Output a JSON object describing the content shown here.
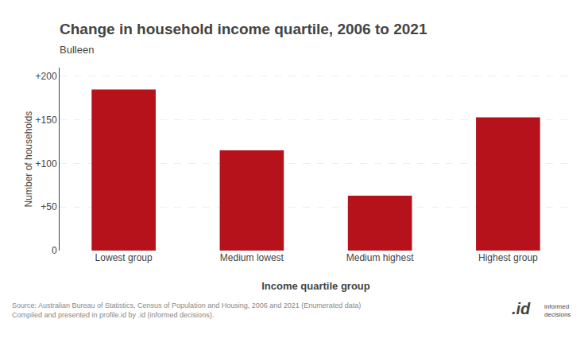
{
  "chart_data": {
    "type": "bar",
    "title": "Change in household income quartile, 2006 to 2021",
    "subtitle": "Bulleen",
    "xlabel": "Income quartile group",
    "ylabel": "Number of households",
    "categories": [
      "Lowest group",
      "Medium lowest",
      "Medium highest",
      "Highest group"
    ],
    "values": [
      185,
      115,
      63,
      153
    ],
    "color": "#b5121b",
    "ylim": [
      0,
      210
    ],
    "yticks": [
      0,
      {
        "value": 50,
        "label": "+50"
      },
      {
        "value": 100,
        "label": "+100"
      },
      {
        "value": 150,
        "label": "+150"
      },
      {
        "value": 200,
        "label": "+200"
      }
    ],
    "grid": true,
    "annotations": [
      "Source: Australian Bureau of Statistics, Census of Population and Housing, 2006 and 2021 (Enumerated data)\nCompiled and presented in profile.id by .id (informed decisions).",
      ".id",
      "informed\ndecisions"
    ]
  }
}
